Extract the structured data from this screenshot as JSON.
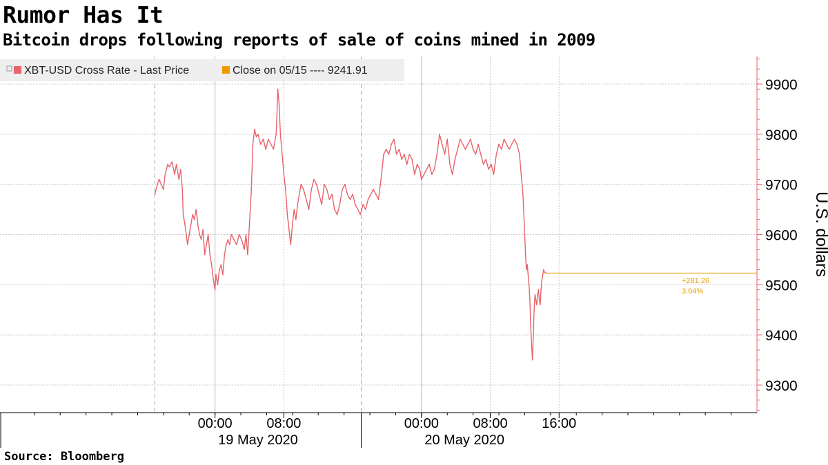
{
  "title": "Rumor Has It",
  "subtitle": "Bitcoin drops following reports of sale of coins mined in 2009",
  "source": "Source:  Bloomberg",
  "colors": {
    "series": "#e8636a",
    "close": "#e8a000",
    "legend_close_swatch": "#f09a00",
    "grid": "#c8c8c8"
  },
  "chart_data": {
    "type": "line",
    "title": "Rumor Has It",
    "subtitle": "Bitcoin drops following reports of sale of coins mined in 2009",
    "ylabel": "U.S. dollars",
    "ylim": [
      9245,
      9955
    ],
    "xlim": [
      -25,
      63
    ],
    "yticks": [
      9300,
      9400,
      9500,
      9600,
      9700,
      9800,
      9900
    ],
    "x_unit": "hours since 19 May 2020 00:00",
    "xticks": [
      {
        "x": 0,
        "label": "00:00"
      },
      {
        "x": 8,
        "label": "08:00"
      },
      {
        "x": 24,
        "label": "00:00"
      },
      {
        "x": 32,
        "label": "08:00"
      },
      {
        "x": 40,
        "label": "16:00"
      }
    ],
    "date_labels": [
      {
        "label": "19 May 2020",
        "x": 5
      },
      {
        "label": "20 May 2020",
        "x": 29
      }
    ],
    "legend": [
      {
        "name": "XBT-USD Cross Rate - Last Price",
        "color": "#e8636a"
      },
      {
        "name": "Close on 05/15 ---- 9241.91",
        "color": "#f09a00"
      }
    ],
    "close_reference": 9241.91,
    "annotation": {
      "change": "+281.26",
      "percent": "3.04%",
      "last_value": 9523.17
    },
    "series": [
      {
        "name": "XBT-USD Cross Rate - Last Price",
        "x": [
          -7,
          -6.7,
          -6.5,
          -6,
          -5.8,
          -5.5,
          -5.3,
          -5,
          -4.7,
          -4.5,
          -4.2,
          -4,
          -3.8,
          -3.7,
          -3.5,
          -3.2,
          -3,
          -2.8,
          -2.6,
          -2.4,
          -2.2,
          -2,
          -1.8,
          -1.6,
          -1.4,
          -1.2,
          -1,
          -0.8,
          -0.6,
          -0.4,
          -0.2,
          0,
          0.1,
          0.3,
          0.5,
          0.7,
          0.9,
          1.1,
          1.3,
          1.5,
          1.7,
          1.9,
          2.2,
          2.5,
          2.8,
          3.1,
          3.4,
          3.6,
          3.8,
          4,
          4.2,
          4.4,
          4.6,
          4.8,
          5,
          5.3,
          5.6,
          5.9,
          6.2,
          6.5,
          6.8,
          7,
          7.1,
          7.2,
          7.3,
          7.45,
          7.6,
          7.8,
          8,
          8.2,
          8.4,
          8.6,
          8.8,
          9,
          9.2,
          9.4,
          9.6,
          9.8,
          10,
          10.3,
          10.6,
          10.9,
          11.2,
          11.5,
          11.8,
          12.1,
          12.4,
          12.7,
          13,
          13.3,
          13.6,
          13.9,
          14.2,
          14.5,
          14.8,
          15.1,
          15.4,
          15.7,
          16,
          16.3,
          16.6,
          16.9,
          17.2,
          17.5,
          17.8,
          18.1,
          18.4,
          18.7,
          19,
          19.3,
          19.6,
          19.9,
          20.2,
          20.5,
          20.8,
          21.1,
          21.4,
          21.7,
          22,
          22.3,
          22.6,
          22.9,
          23.2,
          23.5,
          23.8,
          24,
          24.3,
          24.6,
          24.9,
          25.2,
          25.5,
          25.8,
          26.1,
          26.4,
          26.7,
          27,
          27.3,
          27.6,
          27.9,
          28.2,
          28.5,
          28.8,
          29.1,
          29.4,
          29.7,
          30,
          30.3,
          30.6,
          30.9,
          31.2,
          31.5,
          31.8,
          32.1,
          32.4,
          32.7,
          33,
          33.3,
          33.6,
          33.9,
          34.2,
          34.5,
          34.8,
          35.1,
          35.4,
          35.6,
          35.8,
          35.9,
          36,
          36.1,
          36.2,
          36.3,
          36.4,
          36.5,
          36.6,
          36.7,
          36.8,
          36.9,
          37,
          37.1,
          37.2,
          37.3,
          37.4,
          37.5,
          37.6,
          37.7,
          37.8,
          37.9,
          38,
          38.1,
          38.2,
          38.3,
          38.5
        ],
        "values": [
          9680,
          9700,
          9710,
          9690,
          9720,
          9740,
          9735,
          9745,
          9720,
          9740,
          9710,
          9730,
          9690,
          9640,
          9620,
          9580,
          9600,
          9620,
          9640,
          9630,
          9650,
          9620,
          9600,
          9590,
          9610,
          9560,
          9580,
          9600,
          9560,
          9540,
          9510,
          9490,
          9520,
          9500,
          9530,
          9540,
          9520,
          9560,
          9580,
          9590,
          9580,
          9600,
          9590,
          9580,
          9600,
          9590,
          9570,
          9600,
          9560,
          9620,
          9680,
          9780,
          9810,
          9795,
          9800,
          9780,
          9790,
          9770,
          9790,
          9780,
          9770,
          9790,
          9800,
          9840,
          9890,
          9860,
          9800,
          9760,
          9720,
          9690,
          9640,
          9610,
          9580,
          9620,
          9650,
          9630,
          9660,
          9680,
          9700,
          9690,
          9670,
          9650,
          9690,
          9710,
          9700,
          9680,
          9660,
          9700,
          9690,
          9670,
          9680,
          9650,
          9640,
          9660,
          9690,
          9700,
          9680,
          9670,
          9680,
          9660,
          9650,
          9640,
          9660,
          9650,
          9670,
          9680,
          9690,
          9680,
          9670,
          9710,
          9760,
          9770,
          9760,
          9780,
          9790,
          9760,
          9770,
          9750,
          9760,
          9740,
          9760,
          9750,
          9720,
          9740,
          9730,
          9710,
          9720,
          9730,
          9740,
          9720,
          9730,
          9760,
          9800,
          9780,
          9760,
          9790,
          9740,
          9720,
          9750,
          9770,
          9790,
          9780,
          9770,
          9780,
          9790,
          9770,
          9760,
          9780,
          9760,
          9740,
          9750,
          9730,
          9740,
          9720,
          9760,
          9780,
          9770,
          9790,
          9780,
          9770,
          9780,
          9790,
          9780,
          9760,
          9720,
          9680,
          9640,
          9600,
          9560,
          9530,
          9540,
          9520,
          9500,
          9470,
          9420,
          9380,
          9350,
          9400,
          9450,
          9480,
          9470,
          9460,
          9480,
          9490,
          9470,
          9460,
          9490,
          9510,
          9520,
          9530,
          9525,
          9523
        ]
      }
    ]
  }
}
